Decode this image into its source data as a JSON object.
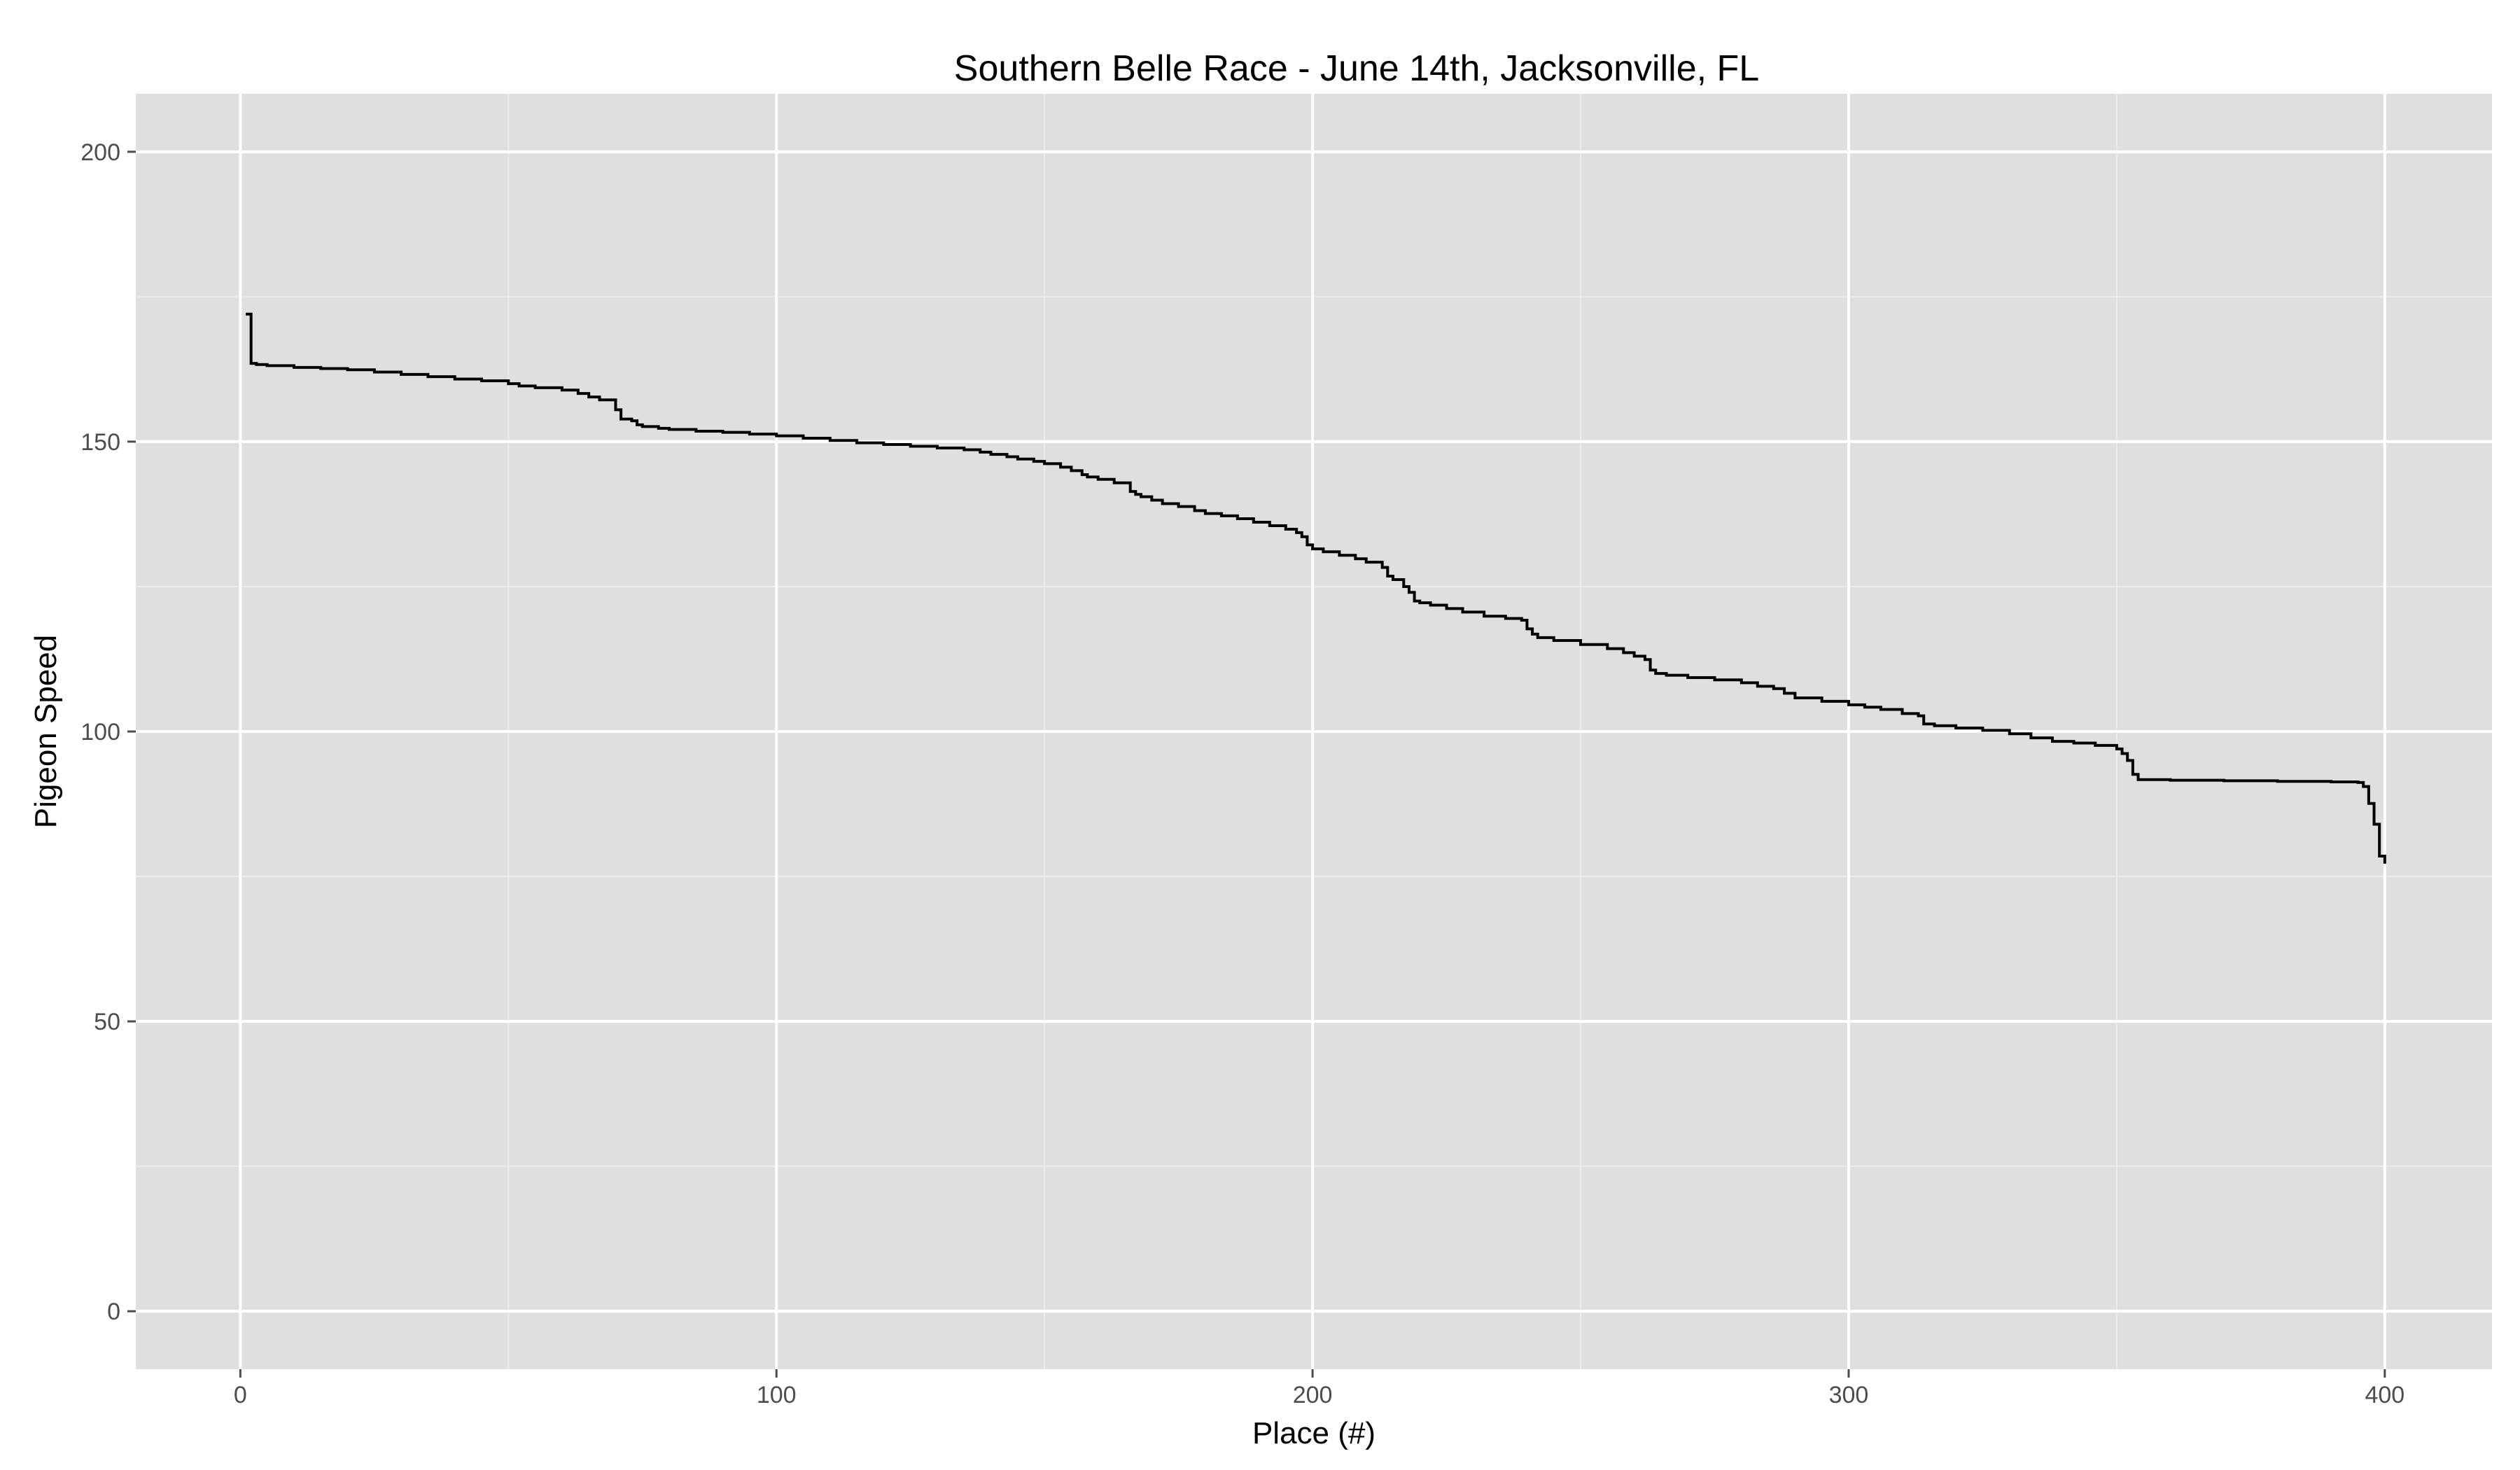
{
  "chart_data": {
    "type": "line",
    "title": "Southern Belle Race - June 14th, Jacksonville, FL",
    "xlabel": "Place (#)",
    "ylabel": "Pigeon Speed",
    "xlim": [
      -19.5,
      420
    ],
    "ylim": [
      -10,
      210
    ],
    "x_ticks": [
      0,
      100,
      200,
      300,
      400
    ],
    "x_tick_labels": [
      "0",
      "100",
      "200",
      "300",
      "400"
    ],
    "y_ticks": [
      0,
      50,
      100,
      150,
      200
    ],
    "y_tick_labels": [
      "0",
      "50",
      "100",
      "150",
      "200"
    ],
    "grid": true,
    "legend": "none",
    "step": true,
    "colors": {
      "panel": "#dfdfdf",
      "grid_major": "#ffffff",
      "grid_minor": "#ececec",
      "line": "#000000",
      "tick_text": "#4d4d4d",
      "tick_mark": "#4d4d4d"
    },
    "series": [
      {
        "x": [
          1,
          2,
          3,
          5,
          10,
          15,
          20,
          25,
          30,
          35,
          40,
          45,
          50,
          52,
          55,
          60,
          63,
          65,
          67,
          70,
          71,
          73,
          74,
          75,
          78,
          80,
          85,
          90,
          95,
          100,
          105,
          110,
          115,
          120,
          125,
          130,
          135,
          138,
          140,
          143,
          145,
          148,
          150,
          153,
          155,
          157,
          158,
          160,
          163,
          166,
          167,
          168,
          170,
          172,
          175,
          178,
          180,
          183,
          186,
          189,
          192,
          195,
          197,
          198,
          199,
          200,
          202,
          205,
          208,
          210,
          213,
          214,
          215,
          217,
          218,
          219,
          220,
          222,
          225,
          228,
          232,
          236,
          239,
          240,
          241,
          242,
          245,
          250,
          255,
          258,
          260,
          262,
          263,
          264,
          266,
          270,
          275,
          280,
          283,
          286,
          288,
          290,
          295,
          300,
          303,
          306,
          310,
          313,
          314,
          316,
          320,
          325,
          330,
          334,
          338,
          342,
          346,
          350,
          351,
          352,
          353,
          354,
          360,
          370,
          380,
          390,
          395,
          396,
          397,
          398,
          399,
          400
        ],
        "y": [
          172,
          163.5,
          163.3,
          163.1,
          162.8,
          162.6,
          162.4,
          162.0,
          161.6,
          161.2,
          160.8,
          160.5,
          160.0,
          159.6,
          159.3,
          158.9,
          158.3,
          157.7,
          157.2,
          155.5,
          153.9,
          153.6,
          152.9,
          152.6,
          152.3,
          152.1,
          151.8,
          151.6,
          151.3,
          151.0,
          150.6,
          150.2,
          149.8,
          149.5,
          149.2,
          148.9,
          148.6,
          148.2,
          147.8,
          147.4,
          147.0,
          146.6,
          146.2,
          145.6,
          145.0,
          144.3,
          143.9,
          143.5,
          142.9,
          141.4,
          140.9,
          140.5,
          139.9,
          139.3,
          138.8,
          138.1,
          137.6,
          137.2,
          136.7,
          136.1,
          135.5,
          134.9,
          134.3,
          133.6,
          132.2,
          131.5,
          131.0,
          130.4,
          129.8,
          129.2,
          128.3,
          126.8,
          126.2,
          125.0,
          124.0,
          122.5,
          122.2,
          121.8,
          121.2,
          120.6,
          119.9,
          119.5,
          119.2,
          117.7,
          116.8,
          116.2,
          115.7,
          115.0,
          114.3,
          113.6,
          113.0,
          112.4,
          110.6,
          110.0,
          109.7,
          109.3,
          108.9,
          108.4,
          107.8,
          107.4,
          106.6,
          105.8,
          105.2,
          104.6,
          104.2,
          103.8,
          103.1,
          102.7,
          101.3,
          101.0,
          100.6,
          100.2,
          99.6,
          98.9,
          98.3,
          98.0,
          97.6,
          97.0,
          96.2,
          95.0,
          92.6,
          91.7,
          91.6,
          91.5,
          91.4,
          91.3,
          91.2,
          90.5,
          87.6,
          84.0,
          78.5,
          77.2
        ]
      }
    ]
  }
}
